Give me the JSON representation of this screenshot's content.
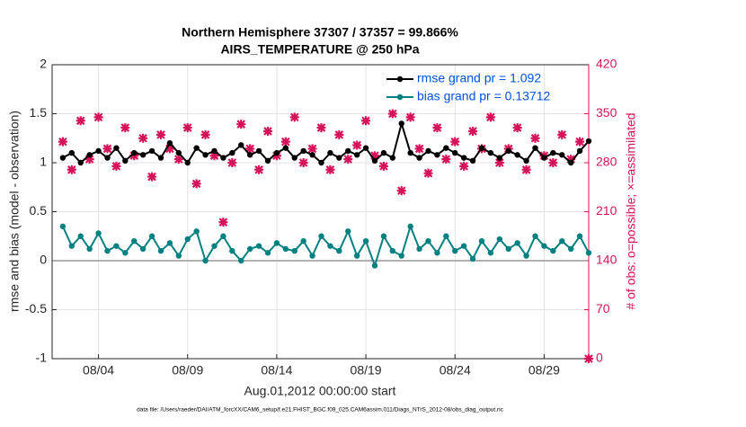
{
  "chart_data": {
    "type": "line",
    "title": "Northern Hemisphere 37307 / 37357 = 99.866%",
    "subtitle": "AIRS_TEMPERATURE @ 250 hPa",
    "xlabel": "Aug.01,2012 00:00:00 start",
    "ylabel": "rmse and bias (model - observation)",
    "y2label": "# of obs: o=possible; ×=assimilated",
    "footnote": "data file: /Users/raeder/DAI/ATM_forcXX/CAM6_setup/f.e21.FHIST_BGC.f09_025.CAM6assim.011/Diags_NTrS_2012-08/obs_diag_output.nc",
    "x": [
      2,
      2.5,
      3,
      3.5,
      4,
      4.5,
      5,
      5.5,
      6,
      6.5,
      7,
      7.5,
      8,
      8.5,
      9,
      9.5,
      10,
      10.5,
      11,
      11.5,
      12,
      12.5,
      13,
      13.5,
      14,
      14.5,
      15,
      15.5,
      16,
      16.5,
      17,
      17.5,
      18,
      18.5,
      19,
      19.5,
      20,
      20.5,
      21,
      21.5,
      22,
      22.5,
      23,
      23.5,
      24,
      24.5,
      25,
      25.5,
      26,
      26.5,
      27,
      27.5,
      28,
      28.5,
      29,
      29.5,
      30,
      30.5,
      31,
      31.5
    ],
    "xlim": [
      1.4,
      31.5
    ],
    "xticks": [
      {
        "value": 4,
        "label": "08/04"
      },
      {
        "value": 9,
        "label": "08/09"
      },
      {
        "value": 14,
        "label": "08/14"
      },
      {
        "value": 19,
        "label": "08/19"
      },
      {
        "value": 24,
        "label": "08/24"
      },
      {
        "value": 29,
        "label": "08/29"
      }
    ],
    "ylim": [
      -1,
      2
    ],
    "yticks": [
      -1,
      -0.5,
      0,
      0.5,
      1,
      1.5,
      2
    ],
    "y2lim": [
      0,
      420
    ],
    "y2ticks": [
      0,
      70,
      140,
      210,
      280,
      350,
      420
    ],
    "grid": true,
    "legend": "upper right",
    "series": [
      {
        "name": "rmse grand pr = 1.092",
        "color": "#000000",
        "values": [
          1.05,
          1.1,
          1.0,
          1.08,
          1.12,
          1.05,
          1.15,
          1.02,
          1.1,
          1.08,
          1.12,
          1.05,
          1.2,
          1.1,
          1.0,
          1.15,
          1.08,
          1.12,
          1.05,
          1.1,
          1.18,
          1.08,
          1.12,
          1.02,
          1.1,
          1.15,
          1.05,
          1.12,
          1.08,
          1.0,
          1.1,
          1.05,
          1.12,
          1.08,
          1.15,
          1.02,
          1.1,
          1.05,
          1.4,
          1.1,
          1.05,
          1.12,
          1.08,
          1.15,
          1.1,
          1.05,
          1.02,
          1.15,
          1.1,
          1.05,
          1.12,
          1.08,
          1.02,
          1.15,
          1.05,
          1.1,
          1.08,
          1.0,
          1.12,
          1.22
        ]
      },
      {
        "name": "bias grand pr = 0.13712",
        "color": "#008080",
        "values": [
          0.35,
          0.15,
          0.25,
          0.12,
          0.28,
          0.1,
          0.15,
          0.08,
          0.2,
          0.12,
          0.25,
          0.1,
          0.18,
          0.05,
          0.22,
          0.3,
          0.0,
          0.15,
          0.25,
          0.1,
          0.0,
          0.12,
          0.15,
          0.08,
          0.18,
          0.12,
          0.1,
          0.2,
          0.05,
          0.25,
          0.15,
          0.1,
          0.3,
          0.05,
          0.2,
          -0.05,
          0.25,
          0.1,
          0.05,
          0.35,
          0.12,
          0.2,
          0.08,
          0.25,
          0.1,
          0.15,
          0.02,
          0.2,
          0.08,
          0.22,
          0.12,
          0.18,
          0.05,
          0.25,
          0.15,
          0.1,
          0.2,
          0.12,
          0.25,
          0.08
        ]
      },
      {
        "color": "#d6135a",
        "axis": "y2",
        "values": [
          310,
          270,
          340,
          285,
          345,
          300,
          275,
          330,
          290,
          315,
          260,
          320,
          300,
          285,
          330,
          250,
          320,
          290,
          195,
          280,
          335,
          300,
          270,
          325,
          290,
          310,
          345,
          280,
          300,
          330,
          270,
          320,
          285,
          305,
          340,
          290,
          275,
          350,
          240,
          345,
          300,
          265,
          330,
          285,
          310,
          275,
          325,
          300,
          345,
          280,
          300,
          330,
          270,
          315,
          290,
          280,
          320,
          285,
          310,
          0
        ]
      }
    ]
  }
}
